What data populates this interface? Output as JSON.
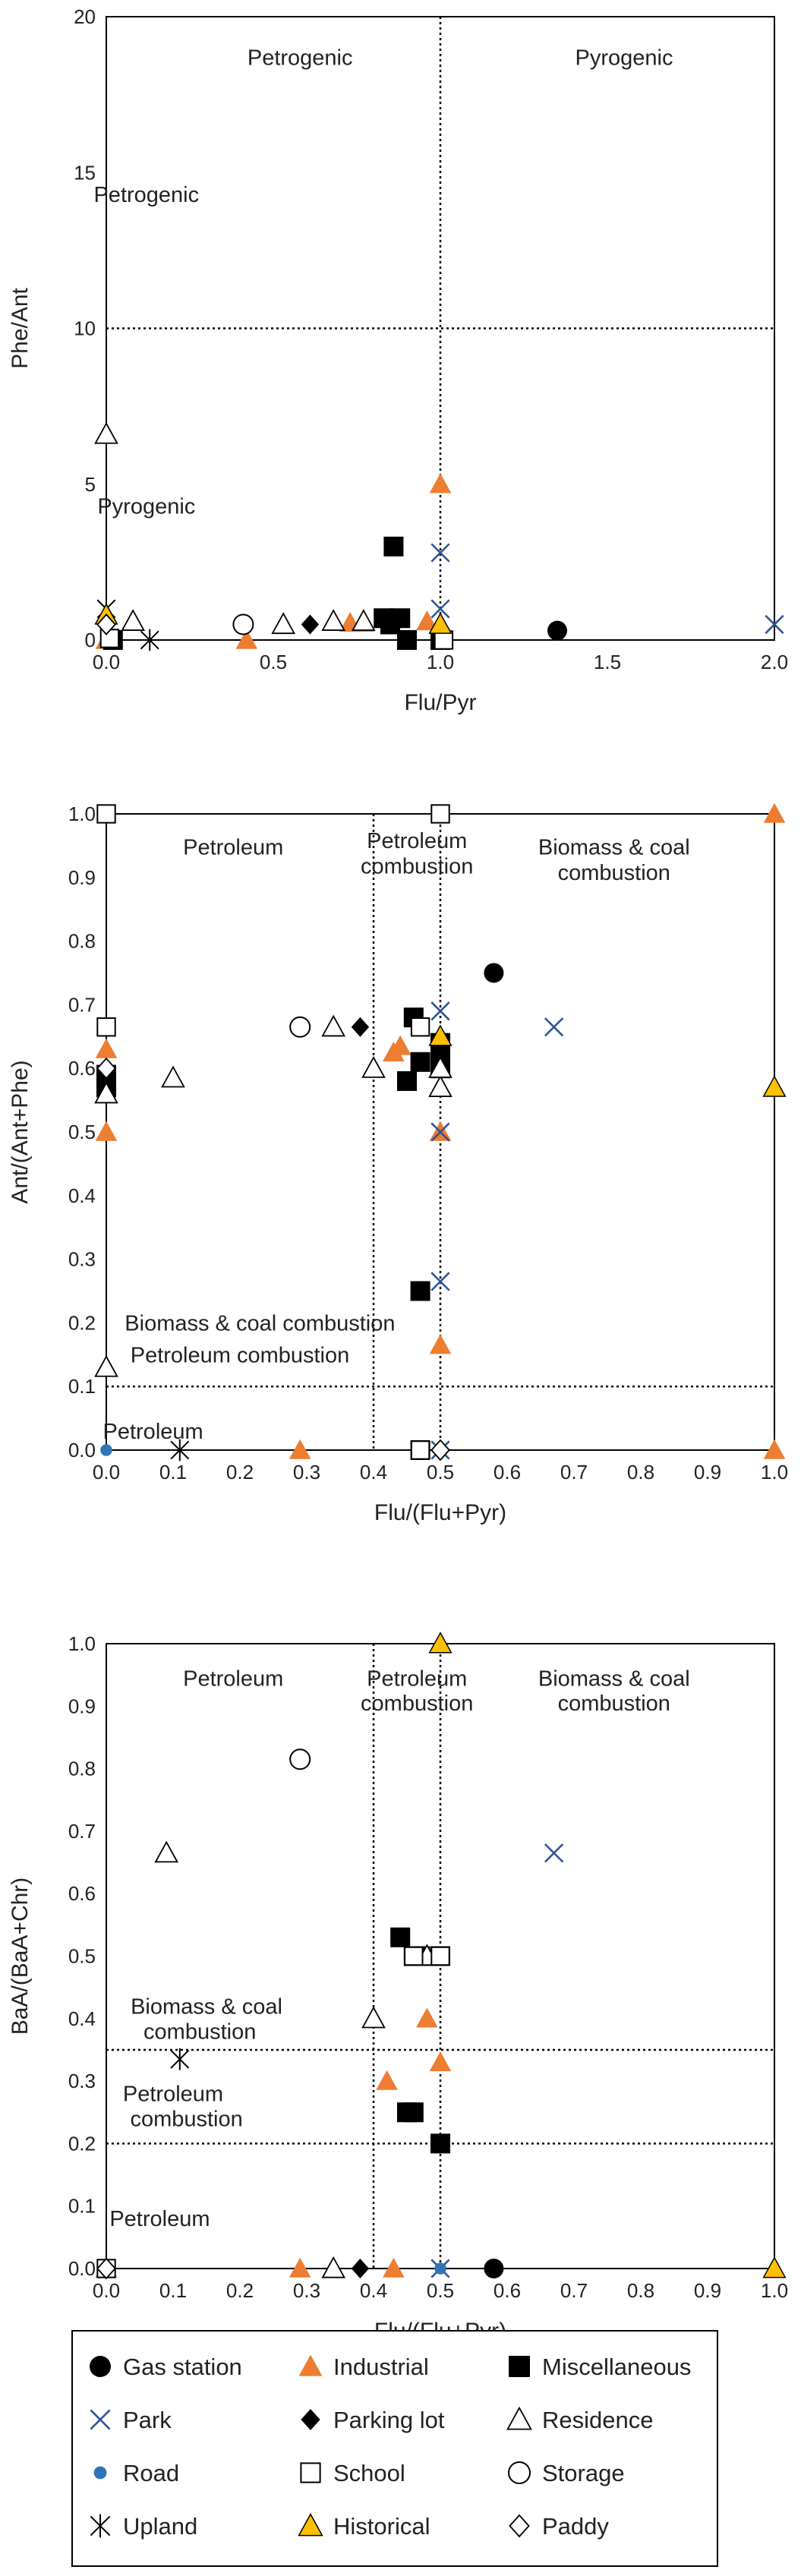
{
  "chart_data": [
    {
      "type": "scatter",
      "xlabel": "Flu/Pyr",
      "ylabel": "Phe/Ant",
      "xlim": [
        0,
        2
      ],
      "ylim": [
        0,
        20
      ],
      "xticks": [
        "0.0",
        "0.5",
        "1.0",
        "1.5",
        "2.0"
      ],
      "yticks": [
        "0",
        "5",
        "10",
        "15",
        "20"
      ],
      "refs_x": [
        1.0
      ],
      "refs_y": [
        10
      ],
      "annotations": [
        {
          "text": "Petrogenic",
          "x": 0.58,
          "y": 18.7
        },
        {
          "text": "Pyrogenic",
          "x": 1.55,
          "y": 18.7
        },
        {
          "text": "Petrogenic",
          "x": 0.12,
          "y": 14.3
        },
        {
          "text": "Pyrogenic",
          "x": 0.12,
          "y": 4.3
        }
      ],
      "series": [
        {
          "name": "Gas station",
          "x": [
            1.35
          ],
          "y": [
            0.3
          ]
        },
        {
          "name": "Industrial",
          "x": [
            0.0,
            0.42,
            0.73,
            0.77,
            0.96,
            1.0
          ],
          "y": [
            0.0,
            0.0,
            0.55,
            0.55,
            0.6,
            5.0
          ]
        },
        {
          "name": "Miscellaneous",
          "x": [
            0.86,
            0.83,
            0.85,
            0.88,
            0.9,
            1.0,
            0.02
          ],
          "y": [
            3.0,
            0.7,
            0.5,
            0.7,
            0.0,
            0.0,
            0.0
          ]
        },
        {
          "name": "Park",
          "x": [
            1.0,
            2.0,
            1.0
          ],
          "y": [
            2.8,
            0.5,
            1.0
          ]
        },
        {
          "name": "Parking lot",
          "x": [
            0.61
          ],
          "y": [
            0.5
          ]
        },
        {
          "name": "Residence",
          "x": [
            0.0,
            0.08,
            0.53,
            0.68,
            0.77
          ],
          "y": [
            6.6,
            0.6,
            0.5,
            0.6,
            0.6
          ]
        },
        {
          "name": "Road",
          "x": [
            0.01
          ],
          "y": [
            0.0
          ]
        },
        {
          "name": "School",
          "x": [
            0.01,
            1.01
          ],
          "y": [
            0.05,
            0.0
          ]
        },
        {
          "name": "Storage",
          "x": [
            0.41
          ],
          "y": [
            0.5
          ]
        },
        {
          "name": "Upland",
          "x": [
            0.0,
            0.13
          ],
          "y": [
            1.0,
            0.0
          ]
        },
        {
          "name": "Historical",
          "x": [
            0.0,
            1.0
          ],
          "y": [
            0.8,
            0.5
          ]
        },
        {
          "name": "Paddy",
          "x": [
            0.0
          ],
          "y": [
            0.5
          ]
        }
      ]
    },
    {
      "type": "scatter",
      "xlabel": "Flu/(Flu+Pyr)",
      "ylabel": "Ant/(Ant+Phe)",
      "xlim": [
        0,
        1
      ],
      "ylim": [
        0,
        1
      ],
      "xticks": [
        "0.0",
        "0.1",
        "0.2",
        "0.3",
        "0.4",
        "0.5",
        "0.6",
        "0.7",
        "0.8",
        "0.9",
        "1.0"
      ],
      "yticks": [
        "0.0",
        "0.1",
        "0.2",
        "0.3",
        "0.4",
        "0.5",
        "0.6",
        "0.7",
        "0.8",
        "0.9",
        "1.0"
      ],
      "refs_x": [
        0.4,
        0.5
      ],
      "refs_y": [
        0.1
      ],
      "annotations": [
        {
          "text": "Petroleum",
          "x": 0.19,
          "y": 0.948
        },
        {
          "text": "Petroleum",
          "x": 0.465,
          "y": 0.958
        },
        {
          "text": "combustion",
          "x": 0.465,
          "y": 0.918
        },
        {
          "text": "Biomass & coal",
          "x": 0.76,
          "y": 0.948
        },
        {
          "text": "combustion",
          "x": 0.76,
          "y": 0.908
        },
        {
          "text": "Biomass & coal combustion",
          "x": 0.23,
          "y": 0.2
        },
        {
          "text": "Petroleum combustion",
          "x": 0.2,
          "y": 0.15
        },
        {
          "text": "Petroleum",
          "x": 0.07,
          "y": 0.03
        }
      ],
      "series": [
        {
          "name": "Gas station",
          "x": [
            0.58
          ],
          "y": [
            0.75
          ]
        },
        {
          "name": "Industrial",
          "x": [
            0.0,
            0.43,
            0.44,
            0.5,
            0.5,
            0.29,
            1.0,
            1.0,
            0.0
          ],
          "y": [
            0.5,
            0.625,
            0.635,
            0.5,
            0.165,
            0.0,
            1.0,
            0.0,
            0.63
          ]
        },
        {
          "name": "Miscellaneous",
          "x": [
            0.0,
            0.0,
            0.45,
            0.46,
            0.47,
            0.5,
            0.5,
            0.5,
            0.47,
            0.47
          ],
          "y": [
            0.59,
            0.57,
            0.58,
            0.68,
            0.61,
            0.6,
            0.62,
            0.64,
            0.25,
            0.0
          ]
        },
        {
          "name": "Park",
          "x": [
            0.0,
            0.5,
            0.5,
            0.67,
            0.5,
            0.5,
            0.5
          ],
          "y": [
            1.0,
            1.0,
            0.69,
            0.665,
            0.5,
            0.265,
            0.0
          ]
        },
        {
          "name": "Parking lot",
          "x": [
            0.38
          ],
          "y": [
            0.665
          ]
        },
        {
          "name": "Residence",
          "x": [
            0.0,
            0.1,
            0.34,
            0.4,
            0.5,
            0.5,
            0.0
          ],
          "y": [
            0.13,
            0.585,
            0.665,
            0.6,
            0.57,
            0.6,
            0.56
          ]
        },
        {
          "name": "Road",
          "x": [
            0.0,
            0.0
          ],
          "y": [
            0.0,
            0.6
          ]
        },
        {
          "name": "School",
          "x": [
            0.0,
            0.0,
            0.47,
            0.5,
            0.47
          ],
          "y": [
            1.0,
            0.665,
            0.665,
            1.0,
            0.0
          ]
        },
        {
          "name": "Storage",
          "x": [
            0.29
          ],
          "y": [
            0.665
          ]
        },
        {
          "name": "Upland",
          "x": [
            0.11
          ],
          "y": [
            0.0
          ]
        },
        {
          "name": "Historical",
          "x": [
            1.0,
            0.5
          ],
          "y": [
            0.57,
            0.65
          ]
        },
        {
          "name": "Paddy",
          "x": [
            0.5,
            0.0
          ],
          "y": [
            0.0,
            0.6
          ]
        }
      ]
    },
    {
      "type": "scatter",
      "xlabel": "Flu/(Flu+Pyr)",
      "ylabel": "BaA/(BaA+Chr)",
      "xlim": [
        0,
        1
      ],
      "ylim": [
        0,
        1
      ],
      "xticks": [
        "0.0",
        "0.1",
        "0.2",
        "0.3",
        "0.4",
        "0.5",
        "0.6",
        "0.7",
        "0.8",
        "0.9",
        "1.0"
      ],
      "yticks": [
        "0.0",
        "0.1",
        "0.2",
        "0.3",
        "0.4",
        "0.5",
        "0.6",
        "0.7",
        "0.8",
        "0.9",
        "1.0"
      ],
      "refs_x": [
        0.4,
        0.5
      ],
      "refs_y": [
        0.2,
        0.35
      ],
      "annotations": [
        {
          "text": "Petroleum",
          "x": 0.19,
          "y": 0.945
        },
        {
          "text": "Petroleum",
          "x": 0.465,
          "y": 0.945
        },
        {
          "text": "combustion",
          "x": 0.465,
          "y": 0.905
        },
        {
          "text": "Biomass & coal",
          "x": 0.76,
          "y": 0.945
        },
        {
          "text": "combustion",
          "x": 0.76,
          "y": 0.905
        },
        {
          "text": "Biomass & coal",
          "x": 0.15,
          "y": 0.42
        },
        {
          "text": "combustion",
          "x": 0.14,
          "y": 0.38
        },
        {
          "text": "Petroleum",
          "x": 0.1,
          "y": 0.28
        },
        {
          "text": "combustion",
          "x": 0.12,
          "y": 0.24
        },
        {
          "text": "Petroleum",
          "x": 0.08,
          "y": 0.08
        }
      ],
      "series": [
        {
          "name": "Gas station",
          "x": [
            0.58
          ],
          "y": [
            0.0
          ]
        },
        {
          "name": "Industrial",
          "x": [
            0.29,
            0.43,
            0.42,
            0.48,
            0.5,
            0.5,
            1.0,
            0.0
          ],
          "y": [
            0.0,
            0.0,
            0.3,
            0.4,
            0.33,
            1.0,
            0.0,
            0.0
          ]
        },
        {
          "name": "Miscellaneous",
          "x": [
            0.44,
            0.46,
            0.47,
            0.5,
            0.45,
            0.46,
            0.5
          ],
          "y": [
            0.53,
            0.5,
            0.5,
            0.5,
            0.25,
            0.25,
            0.2
          ]
        },
        {
          "name": "Park",
          "x": [
            0.67,
            0.5,
            0.5,
            0.0
          ],
          "y": [
            0.665,
            0.5,
            0.0,
            0.0
          ]
        },
        {
          "name": "Parking lot",
          "x": [
            0.38
          ],
          "y": [
            0.0
          ]
        },
        {
          "name": "Residence",
          "x": [
            0.09,
            0.4,
            0.34,
            0.48
          ],
          "y": [
            0.665,
            0.4,
            0.0,
            0.5
          ]
        },
        {
          "name": "Road",
          "x": [
            0.5
          ],
          "y": [
            0.0
          ]
        },
        {
          "name": "School",
          "x": [
            0.46,
            0.5,
            0.0
          ],
          "y": [
            0.5,
            0.5,
            0.0
          ]
        },
        {
          "name": "Storage",
          "x": [
            0.29
          ],
          "y": [
            0.815
          ]
        },
        {
          "name": "Upland",
          "x": [
            0.11
          ],
          "y": [
            0.335
          ]
        },
        {
          "name": "Historical",
          "x": [
            1.0,
            0.5
          ],
          "y": [
            0.0,
            1.0
          ]
        },
        {
          "name": "Paddy",
          "x": [
            0.0
          ],
          "y": [
            0.0
          ]
        }
      ]
    }
  ],
  "legend": {
    "placement": "bottom",
    "items": [
      {
        "name": "Gas station",
        "marker": "circle-filled",
        "color": "#000000"
      },
      {
        "name": "Industrial",
        "marker": "triangle-filled",
        "color": "#ED7D31"
      },
      {
        "name": "Miscellaneous",
        "marker": "square-filled",
        "color": "#000000"
      },
      {
        "name": "Park",
        "marker": "x",
        "color": "#2F5597"
      },
      {
        "name": "Parking lot",
        "marker": "diamond-filled",
        "color": "#000000"
      },
      {
        "name": "Residence",
        "marker": "triangle-open",
        "color": "#000000"
      },
      {
        "name": "Road",
        "marker": "dot-small",
        "color": "#2E75B6"
      },
      {
        "name": "School",
        "marker": "square-open",
        "color": "#000000"
      },
      {
        "name": "Storage",
        "marker": "circle-open",
        "color": "#000000"
      },
      {
        "name": "Upland",
        "marker": "asterisk",
        "color": "#000000"
      },
      {
        "name": "Historical",
        "marker": "triangle-yellow",
        "color": "#FFC000"
      },
      {
        "name": "Paddy",
        "marker": "diamond-open",
        "color": "#000000"
      }
    ]
  }
}
